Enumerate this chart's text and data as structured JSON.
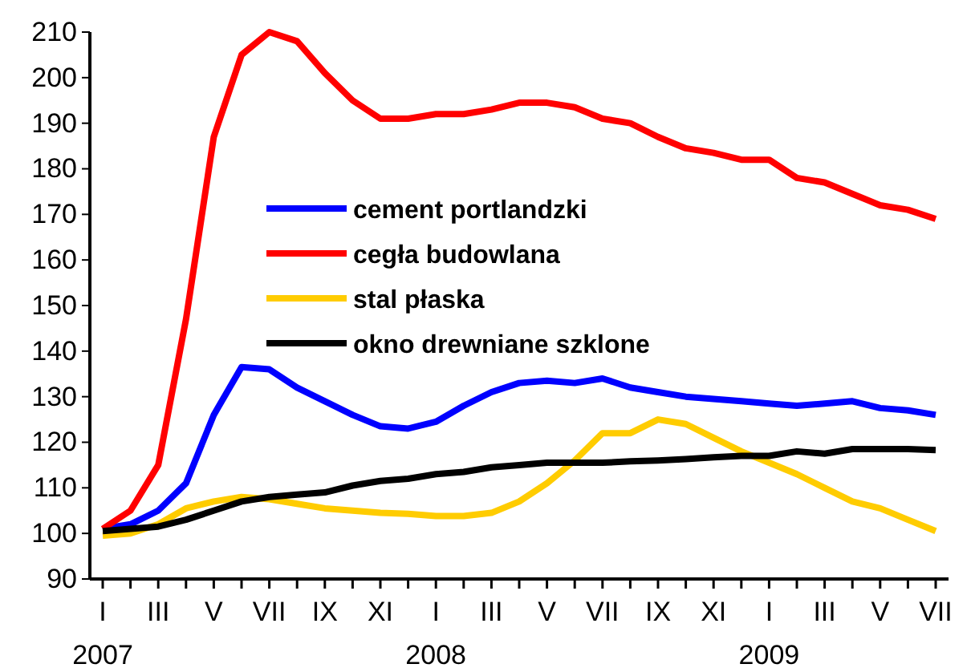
{
  "chart_data": {
    "type": "line",
    "categories": [
      "I\n2007",
      null,
      "III",
      null,
      "V",
      null,
      "VII",
      null,
      "IX",
      null,
      "XI",
      null,
      "I\n2008",
      null,
      "III",
      null,
      "V",
      null,
      "VII",
      null,
      "IX",
      null,
      "XI",
      null,
      "I\n2009",
      null,
      "III",
      null,
      "V",
      null,
      "VII"
    ],
    "series": [
      {
        "name": "cement portlandzki",
        "color": "#0000ff",
        "values": [
          101,
          102,
          105,
          111,
          126,
          136.5,
          136,
          132,
          129,
          126,
          123.5,
          123,
          124.5,
          128,
          131,
          133,
          133.5,
          133,
          134,
          132,
          131,
          130,
          129.5,
          129,
          128.5,
          128,
          128.5,
          129,
          127.5,
          127,
          126
        ]
      },
      {
        "name": "cegła budowlana",
        "color": "#ff0000",
        "values": [
          101,
          105,
          115,
          147,
          187,
          205,
          210,
          208,
          201,
          195,
          191,
          191,
          192,
          192,
          193,
          194.5,
          194.5,
          193.5,
          191,
          190,
          187,
          184.5,
          183.5,
          182,
          182,
          178,
          177,
          174.5,
          172,
          171,
          169
        ]
      },
      {
        "name": "stal płaska",
        "color": "#ffcc00",
        "values": [
          99.5,
          100,
          102,
          105.5,
          107,
          108,
          107.5,
          106.5,
          105.5,
          105,
          104.5,
          104.3,
          103.8,
          103.8,
          104.5,
          107,
          111,
          116,
          122,
          122,
          125,
          124,
          121,
          118,
          115.5,
          113,
          110,
          107,
          105.5,
          103,
          100.5
        ]
      },
      {
        "name": "okno drewniane szklone",
        "color": "#000000",
        "values": [
          100.5,
          101,
          101.5,
          103,
          105,
          107,
          108,
          108.5,
          109,
          110.5,
          111.5,
          112,
          113,
          113.5,
          114.5,
          115,
          115.5,
          115.5,
          115.5,
          115.8,
          116,
          116.3,
          116.7,
          117,
          117,
          118,
          117.5,
          118.5,
          118.5,
          118.5,
          118.3
        ]
      }
    ],
    "ylim": [
      90,
      210
    ],
    "yticks": [
      90,
      100,
      110,
      120,
      130,
      140,
      150,
      160,
      170,
      180,
      190,
      200,
      210
    ],
    "grid": false,
    "legend": "center",
    "line_style": "solid",
    "marker": "none"
  }
}
